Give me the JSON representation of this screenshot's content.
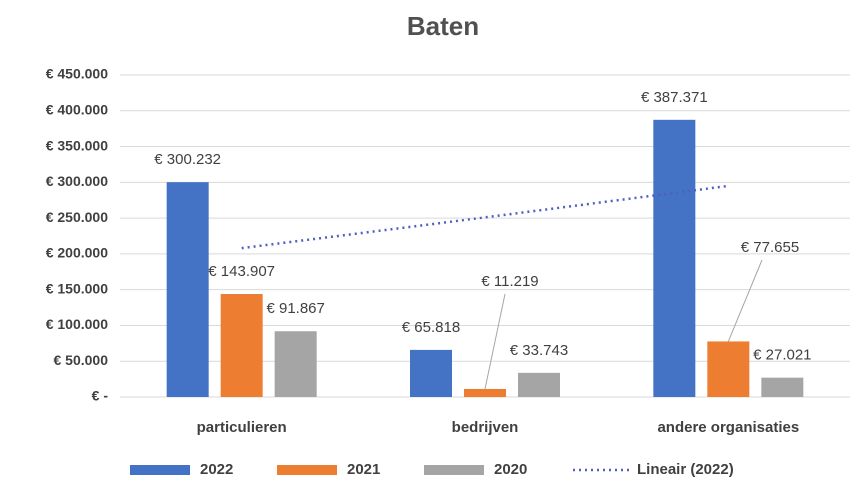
{
  "chart_data": {
    "type": "bar",
    "title": "Baten",
    "categories": [
      "particulieren",
      "bedrijven",
      "andere organisaties"
    ],
    "series": [
      {
        "name": "2022",
        "color": "#4472c4",
        "values": [
          300232,
          65818,
          387371
        ],
        "value_labels": [
          "€ 300.232",
          "€ 65.818",
          "€ 387.371"
        ]
      },
      {
        "name": "2021",
        "color": "#ed7d31",
        "values": [
          143907,
          11219,
          77655
        ],
        "value_labels": [
          "€ 143.907",
          "€ 11.219",
          "€ 77.655"
        ]
      },
      {
        "name": "2020",
        "color": "#a5a5a5",
        "values": [
          91867,
          33743,
          27021
        ],
        "value_labels": [
          "€ 91.867",
          "€ 33.743",
          "€ 27.021"
        ]
      }
    ],
    "trendline": {
      "name": "Lineair (2022)",
      "color": "#4f5fc4",
      "values": [
        208000,
        251000,
        295000
      ]
    },
    "ylim": [
      0,
      450000
    ],
    "yticks": [
      {
        "value": 0,
        "label": "€ -"
      },
      {
        "value": 50000,
        "label": "€ 50.000"
      },
      {
        "value": 100000,
        "label": "€ 100.000"
      },
      {
        "value": 150000,
        "label": "€ 150.000"
      },
      {
        "value": 200000,
        "label": "€ 200.000"
      },
      {
        "value": 250000,
        "label": "€ 250.000"
      },
      {
        "value": 300000,
        "label": "€ 300.000"
      },
      {
        "value": 350000,
        "label": "€ 350.000"
      },
      {
        "value": 400000,
        "label": "€ 400.000"
      },
      {
        "value": 450000,
        "label": "€ 450.000"
      }
    ],
    "grid": true,
    "legend": "bottom"
  }
}
